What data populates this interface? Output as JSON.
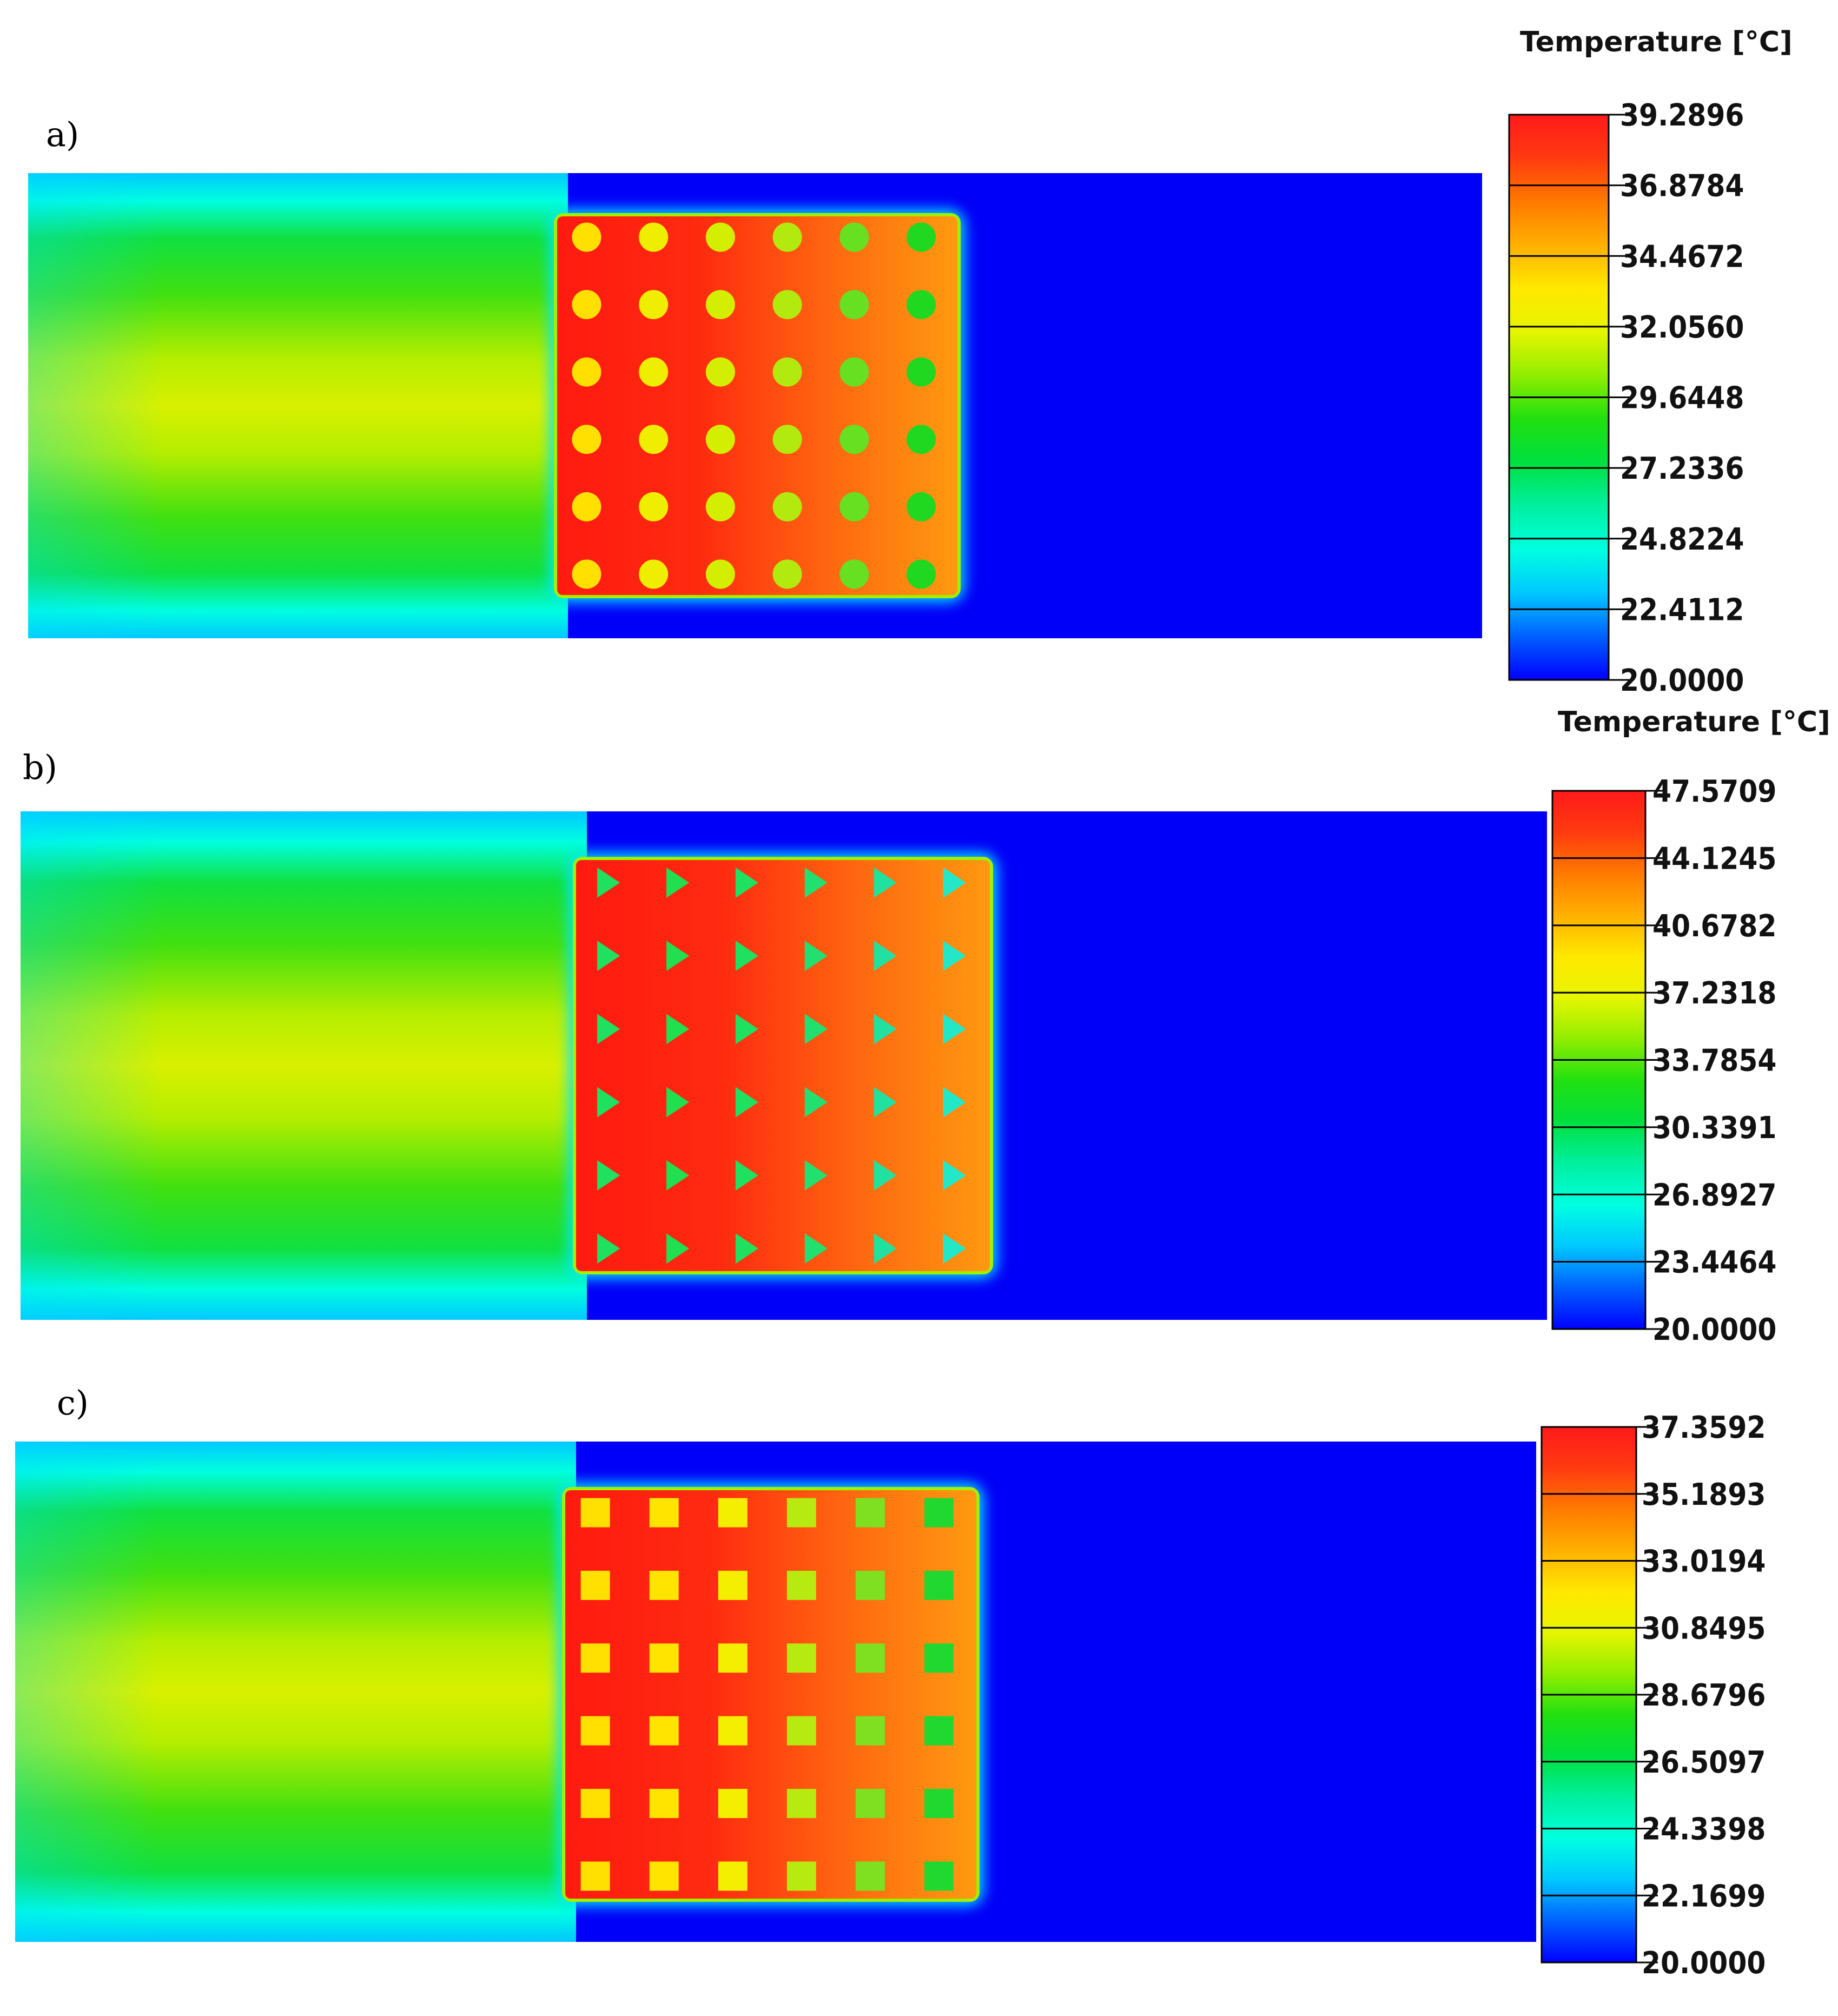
{
  "legend_title": "Temperature [°C]",
  "colormap": [
    "#0000ff",
    "#0060ff",
    "#00c8ff",
    "#00ffe0",
    "#00f0a0",
    "#00e040",
    "#20e010",
    "#90ee00",
    "#e6f500",
    "#ffe800",
    "#ffb000",
    "#ff7a00",
    "#ff3a10",
    "#ff1a1a"
  ],
  "panels": [
    {
      "label": "a)",
      "fin_shape": "circle",
      "show_title": true,
      "ticks": [
        "39.2896",
        "36.8784",
        "34.4672",
        "32.0560",
        "29.6448",
        "27.2336",
        "24.8224",
        "22.4112",
        "20.0000"
      ],
      "fin_columns": [
        "#ffe000",
        "#f0ee00",
        "#d4ee00",
        "#b2ea10",
        "#66e020",
        "#20d820"
      ]
    },
    {
      "label": "b)",
      "fin_shape": "triangle",
      "show_title": true,
      "ticks": [
        "47.5709",
        "44.1245",
        "40.6782",
        "37.2318",
        "33.7854",
        "30.3391",
        "26.8927",
        "23.4464",
        "20.0000"
      ],
      "fin_columns": [
        "#20e060",
        "#20e050",
        "#20e060",
        "#22e070",
        "#22e0a0",
        "#22e8c8"
      ]
    },
    {
      "label": "c)",
      "fin_shape": "square",
      "show_title": false,
      "ticks": [
        "37.3592",
        "35.1893",
        "33.0194",
        "30.8495",
        "28.6796",
        "26.5097",
        "24.3398",
        "22.1699",
        "20.0000"
      ],
      "fin_columns": [
        "#ffe000",
        "#ffe400",
        "#f4ee00",
        "#b6ea10",
        "#7ee020",
        "#20d830"
      ]
    }
  ]
}
